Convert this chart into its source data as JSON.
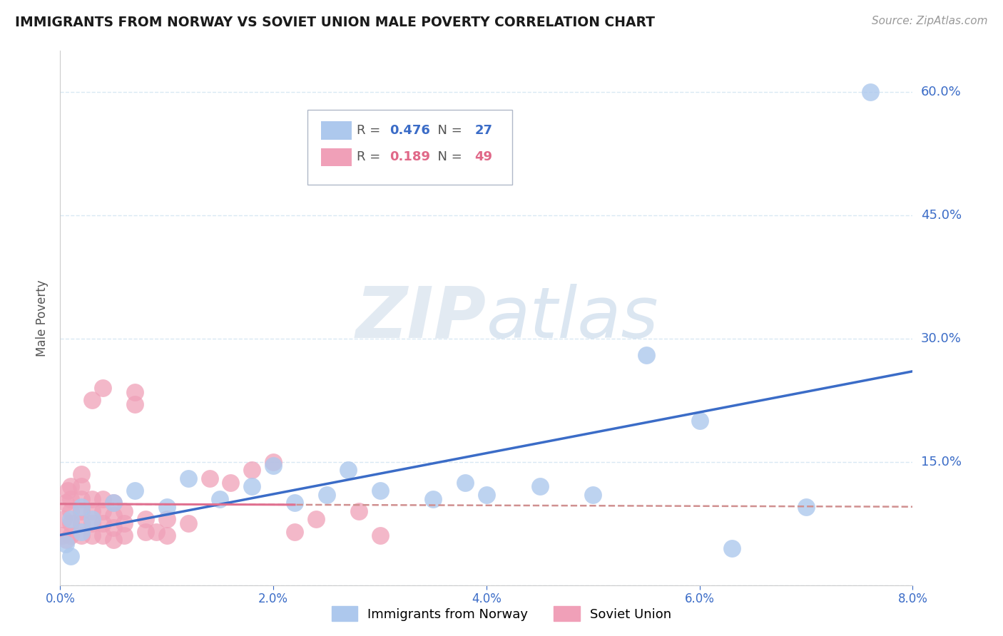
{
  "title": "IMMIGRANTS FROM NORWAY VS SOVIET UNION MALE POVERTY CORRELATION CHART",
  "source": "Source: ZipAtlas.com",
  "ylabel": "Male Poverty",
  "xlim": [
    0.0,
    0.08
  ],
  "ylim": [
    0.0,
    0.65
  ],
  "yticks": [
    0.0,
    0.15,
    0.3,
    0.45,
    0.6
  ],
  "ytick_labels": [
    "",
    "15.0%",
    "30.0%",
    "45.0%",
    "60.0%"
  ],
  "xticks": [
    0.0,
    0.02,
    0.04,
    0.06,
    0.08
  ],
  "xtick_labels": [
    "0.0%",
    "2.0%",
    "4.0%",
    "6.0%",
    "8.0%"
  ],
  "norway_R": 0.476,
  "norway_N": 27,
  "soviet_R": 0.189,
  "soviet_N": 49,
  "norway_color": "#adc8ed",
  "soviet_color": "#f0a0b8",
  "norway_line_color": "#3b6cc7",
  "soviet_line_color": "#e07090",
  "soviet_dash_color": "#d09090",
  "background_color": "#ffffff",
  "grid_color": "#d8e8f4",
  "norway_x": [
    0.0005,
    0.001,
    0.001,
    0.002,
    0.002,
    0.003,
    0.005,
    0.007,
    0.01,
    0.012,
    0.015,
    0.018,
    0.02,
    0.022,
    0.025,
    0.027,
    0.03,
    0.035,
    0.038,
    0.04,
    0.045,
    0.05,
    0.055,
    0.06,
    0.063,
    0.07,
    0.076
  ],
  "norway_y": [
    0.05,
    0.035,
    0.08,
    0.065,
    0.095,
    0.08,
    0.1,
    0.115,
    0.095,
    0.13,
    0.105,
    0.12,
    0.145,
    0.1,
    0.11,
    0.14,
    0.115,
    0.105,
    0.125,
    0.11,
    0.12,
    0.11,
    0.28,
    0.2,
    0.045,
    0.095,
    0.6
  ],
  "soviet_x": [
    0.0002,
    0.0003,
    0.0005,
    0.0006,
    0.0007,
    0.001,
    0.001,
    0.001,
    0.001,
    0.001,
    0.002,
    0.002,
    0.002,
    0.002,
    0.002,
    0.002,
    0.003,
    0.003,
    0.003,
    0.003,
    0.003,
    0.004,
    0.004,
    0.004,
    0.004,
    0.004,
    0.005,
    0.005,
    0.005,
    0.005,
    0.006,
    0.006,
    0.006,
    0.007,
    0.007,
    0.008,
    0.008,
    0.009,
    0.01,
    0.01,
    0.012,
    0.014,
    0.016,
    0.018,
    0.02,
    0.022,
    0.024,
    0.028,
    0.03
  ],
  "soviet_y": [
    0.06,
    0.08,
    0.1,
    0.055,
    0.115,
    0.06,
    0.075,
    0.09,
    0.105,
    0.12,
    0.06,
    0.075,
    0.09,
    0.105,
    0.12,
    0.135,
    0.06,
    0.075,
    0.09,
    0.105,
    0.225,
    0.06,
    0.075,
    0.09,
    0.105,
    0.24,
    0.055,
    0.07,
    0.085,
    0.1,
    0.06,
    0.075,
    0.09,
    0.22,
    0.235,
    0.065,
    0.08,
    0.065,
    0.06,
    0.08,
    0.075,
    0.13,
    0.125,
    0.14,
    0.15,
    0.065,
    0.08,
    0.09,
    0.06
  ]
}
